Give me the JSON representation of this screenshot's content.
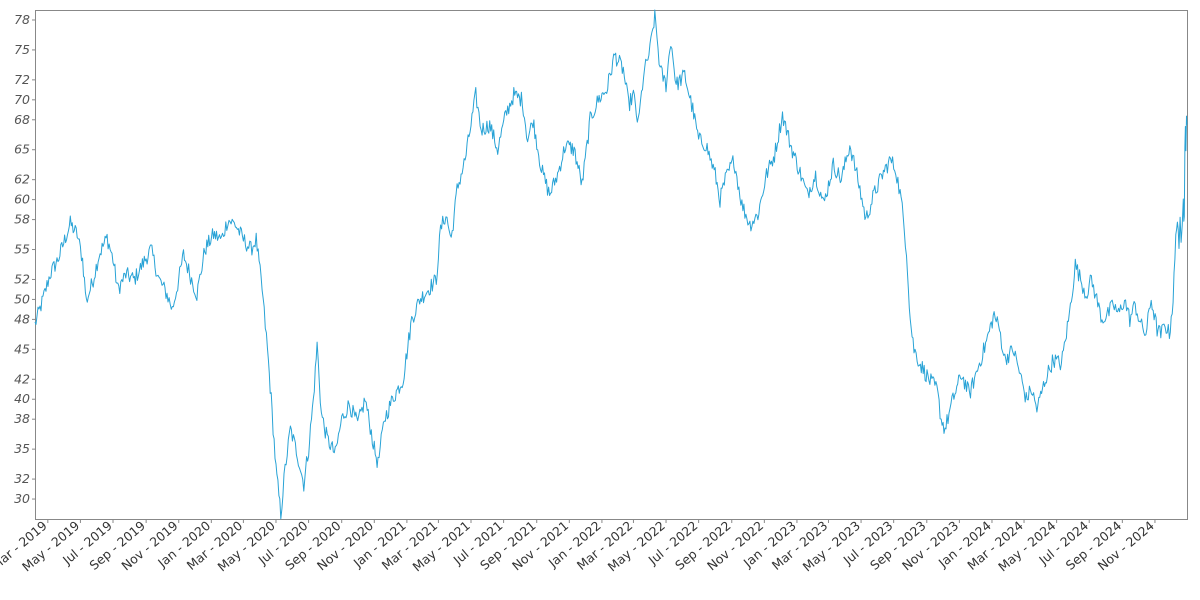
{
  "chart_data": {
    "type": "line",
    "title": "",
    "xlabel": "",
    "ylabel": "",
    "x_range": [
      "2019-02-05",
      "2024-12-31"
    ],
    "ylim": [
      28,
      79
    ],
    "y_ticks": [
      "30",
      "32",
      "35",
      "38",
      "40",
      "42",
      "45",
      "48",
      "50",
      "52",
      "55",
      "58",
      "60",
      "62",
      "65",
      "68",
      "70",
      "72",
      "75",
      "78"
    ],
    "x_ticks": [
      "Mar - 2019",
      "May - 2019",
      "Jul - 2019",
      "Sep - 2019",
      "Nov - 2019",
      "Jan - 2020",
      "Mar - 2020",
      "May - 2020",
      "Jul - 2020",
      "Sep - 2020",
      "Nov - 2020",
      "Jan - 2021",
      "Mar - 2021",
      "May - 2021",
      "Jul - 2021",
      "Sep - 2021",
      "Nov - 2021",
      "Jan - 2022",
      "Mar - 2022",
      "May - 2022",
      "Jul - 2022",
      "Sep - 2022",
      "Nov - 2022",
      "Jan - 2023",
      "Mar - 2023",
      "May - 2023",
      "Jul - 2023",
      "Sep - 2023",
      "Nov - 2023",
      "Jan - 2024",
      "Mar - 2024",
      "May - 2024",
      "Jul - 2024",
      "Sep - 2024",
      "Nov - 2024"
    ],
    "grid": false,
    "legend": "none",
    "colors": {
      "line": "#29a3d6",
      "frame": "#888888"
    },
    "series": [
      {
        "points": [
          [
            "2019-02-05",
            47.5
          ],
          [
            "2019-02-20",
            50.0
          ],
          [
            "2019-03-05",
            52.5
          ],
          [
            "2019-03-20",
            54.0
          ],
          [
            "2019-04-05",
            56.5
          ],
          [
            "2019-04-12",
            57.6
          ],
          [
            "2019-04-25",
            56.5
          ],
          [
            "2019-05-05",
            54.0
          ],
          [
            "2019-05-12",
            49.8
          ],
          [
            "2019-05-25",
            52.0
          ],
          [
            "2019-06-05",
            54.5
          ],
          [
            "2019-06-20",
            56.2
          ],
          [
            "2019-07-01",
            54.0
          ],
          [
            "2019-07-10",
            51.0
          ],
          [
            "2019-07-25",
            52.5
          ],
          [
            "2019-08-10",
            52.0
          ],
          [
            "2019-08-25",
            53.5
          ],
          [
            "2019-09-10",
            55.0
          ],
          [
            "2019-09-25",
            52.0
          ],
          [
            "2019-10-10",
            50.5
          ],
          [
            "2019-10-20",
            49.0
          ],
          [
            "2019-11-01",
            52.0
          ],
          [
            "2019-11-10",
            54.5
          ],
          [
            "2019-11-25",
            52.0
          ],
          [
            "2019-12-05",
            50.5
          ],
          [
            "2019-12-20",
            55.0
          ],
          [
            "2020-01-05",
            56.5
          ],
          [
            "2020-01-20",
            56.0
          ],
          [
            "2020-02-01",
            58.0
          ],
          [
            "2020-02-15",
            57.5
          ],
          [
            "2020-03-01",
            56.0
          ],
          [
            "2020-03-15",
            55.0
          ],
          [
            "2020-03-25",
            56.0
          ],
          [
            "2020-04-05",
            51.0
          ],
          [
            "2020-04-15",
            45.0
          ],
          [
            "2020-04-22",
            40.0
          ],
          [
            "2020-05-01",
            33.0
          ],
          [
            "2020-05-10",
            28.5
          ],
          [
            "2020-05-18",
            33.0
          ],
          [
            "2020-05-28",
            37.0
          ],
          [
            "2020-06-10",
            34.5
          ],
          [
            "2020-06-22",
            31.5
          ],
          [
            "2020-07-01",
            35.0
          ],
          [
            "2020-07-10",
            40.0
          ],
          [
            "2020-07-17",
            45.5
          ],
          [
            "2020-07-25",
            38.5
          ],
          [
            "2020-08-05",
            36.0
          ],
          [
            "2020-08-20",
            34.5
          ],
          [
            "2020-09-01",
            38.0
          ],
          [
            "2020-09-15",
            39.5
          ],
          [
            "2020-10-01",
            37.5
          ],
          [
            "2020-10-15",
            40.0
          ],
          [
            "2020-11-01",
            35.0
          ],
          [
            "2020-11-08",
            33.5
          ],
          [
            "2020-11-20",
            38.0
          ],
          [
            "2020-12-05",
            40.0
          ],
          [
            "2020-12-25",
            42.0
          ],
          [
            "2021-01-10",
            48.0
          ],
          [
            "2021-01-25",
            50.0
          ],
          [
            "2021-02-10",
            51.0
          ],
          [
            "2021-02-25",
            52.0
          ],
          [
            "2021-03-05",
            57.0
          ],
          [
            "2021-03-15",
            58.5
          ],
          [
            "2021-03-25",
            56.0
          ],
          [
            "2021-04-05",
            61.0
          ],
          [
            "2021-04-20",
            64.0
          ],
          [
            "2021-05-01",
            67.5
          ],
          [
            "2021-05-10",
            70.5
          ],
          [
            "2021-05-20",
            67.0
          ],
          [
            "2021-06-05",
            67.5
          ],
          [
            "2021-06-20",
            65.0
          ],
          [
            "2021-07-05",
            68.5
          ],
          [
            "2021-07-20",
            70.5
          ],
          [
            "2021-08-05",
            70.0
          ],
          [
            "2021-08-15",
            66.0
          ],
          [
            "2021-08-25",
            68.0
          ],
          [
            "2021-09-10",
            63.0
          ],
          [
            "2021-09-25",
            60.5
          ],
          [
            "2021-10-10",
            62.5
          ],
          [
            "2021-10-25",
            65.5
          ],
          [
            "2021-11-10",
            65.0
          ],
          [
            "2021-11-25",
            61.5
          ],
          [
            "2021-12-10",
            68.0
          ],
          [
            "2021-12-25",
            70.0
          ],
          [
            "2022-01-10",
            71.0
          ],
          [
            "2022-01-25",
            74.5
          ],
          [
            "2022-02-10",
            73.0
          ],
          [
            "2022-02-20",
            69.5
          ],
          [
            "2022-03-01",
            70.5
          ],
          [
            "2022-03-10",
            67.5
          ],
          [
            "2022-03-20",
            72.5
          ],
          [
            "2022-04-01",
            75.0
          ],
          [
            "2022-04-10",
            78.5
          ],
          [
            "2022-04-20",
            73.0
          ],
          [
            "2022-05-01",
            71.5
          ],
          [
            "2022-05-10",
            76.0
          ],
          [
            "2022-05-20",
            71.5
          ],
          [
            "2022-06-05",
            72.5
          ],
          [
            "2022-06-20",
            69.0
          ],
          [
            "2022-07-01",
            66.0
          ],
          [
            "2022-07-15",
            65.5
          ],
          [
            "2022-08-01",
            62.5
          ],
          [
            "2022-08-10",
            60.0
          ],
          [
            "2022-08-20",
            62.0
          ],
          [
            "2022-09-05",
            64.0
          ],
          [
            "2022-09-20",
            59.5
          ],
          [
            "2022-10-05",
            57.5
          ],
          [
            "2022-10-20",
            58.5
          ],
          [
            "2022-11-05",
            62.5
          ],
          [
            "2022-11-20",
            64.5
          ],
          [
            "2022-12-05",
            68.5
          ],
          [
            "2022-12-20",
            65.5
          ],
          [
            "2023-01-05",
            63.0
          ],
          [
            "2023-01-20",
            60.5
          ],
          [
            "2023-02-05",
            62.5
          ],
          [
            "2023-02-20",
            59.5
          ],
          [
            "2023-03-10",
            63.5
          ],
          [
            "2023-03-25",
            62.0
          ],
          [
            "2023-04-10",
            65.5
          ],
          [
            "2023-04-25",
            62.0
          ],
          [
            "2023-05-10",
            58.0
          ],
          [
            "2023-05-25",
            60.5
          ],
          [
            "2023-06-10",
            62.5
          ],
          [
            "2023-06-25",
            64.0
          ],
          [
            "2023-07-05",
            63.0
          ],
          [
            "2023-07-15",
            60.0
          ],
          [
            "2023-07-25",
            55.0
          ],
          [
            "2023-08-01",
            48.0
          ],
          [
            "2023-08-08",
            45.0
          ],
          [
            "2023-08-20",
            43.5
          ],
          [
            "2023-09-05",
            42.0
          ],
          [
            "2023-09-20",
            41.0
          ],
          [
            "2023-09-28",
            38.0
          ],
          [
            "2023-10-05",
            37.0
          ],
          [
            "2023-10-20",
            40.0
          ],
          [
            "2023-11-05",
            42.5
          ],
          [
            "2023-11-20",
            40.5
          ],
          [
            "2023-12-05",
            43.0
          ],
          [
            "2023-12-20",
            45.5
          ],
          [
            "2024-01-05",
            48.5
          ],
          [
            "2024-01-15",
            47.0
          ],
          [
            "2024-01-25",
            44.0
          ],
          [
            "2024-02-10",
            45.0
          ],
          [
            "2024-02-25",
            42.0
          ],
          [
            "2024-03-05",
            40.0
          ],
          [
            "2024-03-15",
            41.0
          ],
          [
            "2024-03-25",
            39.0
          ],
          [
            "2024-04-10",
            42.0
          ],
          [
            "2024-04-25",
            44.0
          ],
          [
            "2024-05-10",
            43.5
          ],
          [
            "2024-05-25",
            48.5
          ],
          [
            "2024-06-05",
            53.5
          ],
          [
            "2024-06-15",
            52.0
          ],
          [
            "2024-06-25",
            50.5
          ],
          [
            "2024-07-05",
            52.0
          ],
          [
            "2024-07-15",
            50.0
          ],
          [
            "2024-07-25",
            48.0
          ],
          [
            "2024-08-05",
            48.5
          ],
          [
            "2024-08-15",
            49.5
          ],
          [
            "2024-08-25",
            48.5
          ],
          [
            "2024-09-05",
            50.0
          ],
          [
            "2024-09-15",
            48.0
          ],
          [
            "2024-09-25",
            49.5
          ],
          [
            "2024-10-05",
            47.5
          ],
          [
            "2024-10-15",
            46.5
          ],
          [
            "2024-10-25",
            50.0
          ],
          [
            "2024-11-05",
            47.0
          ],
          [
            "2024-11-12",
            46.5
          ],
          [
            "2024-11-20",
            47.5
          ],
          [
            "2024-11-28",
            46.5
          ],
          [
            "2024-12-05",
            50.0
          ],
          [
            "2024-12-10",
            56.0
          ],
          [
            "2024-12-13",
            58.5
          ],
          [
            "2024-12-16",
            55.5
          ],
          [
            "2024-12-18",
            57.5
          ],
          [
            "2024-12-20",
            55.0
          ],
          [
            "2024-12-22",
            57.0
          ],
          [
            "2024-12-24",
            60.0
          ],
          [
            "2024-12-25",
            58.5
          ],
          [
            "2024-12-26",
            59.0
          ],
          [
            "2024-12-27",
            66.0
          ],
          [
            "2024-12-28",
            68.0
          ],
          [
            "2024-12-29",
            65.5
          ],
          [
            "2024-12-30",
            68.5
          ],
          [
            "2024-12-31",
            67.5
          ]
        ]
      }
    ]
  }
}
